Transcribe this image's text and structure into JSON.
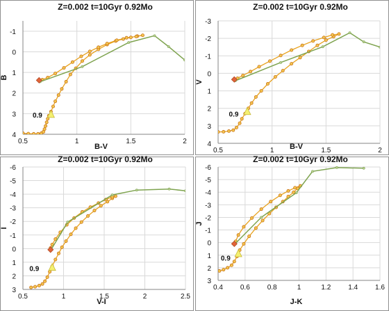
{
  "chart_data": [
    {
      "type": "line",
      "title": "Z=0.002  t=10Gyr 0.92Mo",
      "xlabel": "B-V",
      "ylabel": "B",
      "xlim": [
        0.5,
        2
      ],
      "ylim": [
        4,
        -1.5
      ],
      "y_inverted": true,
      "xticks": [
        "0.5",
        "1",
        "1.5",
        "2"
      ],
      "xtick_values": [
        0.5,
        1,
        1.5,
        2
      ],
      "yticks": [
        "-1",
        "0",
        "1",
        "2",
        "3",
        "4"
      ],
      "ytick_values": [
        -1,
        0,
        1,
        2,
        3,
        4
      ],
      "colors": {
        "model": "#e8a21e",
        "marker_edge": "#c9731a",
        "comparison": "#7ea34f",
        "triangle": "#f4f071",
        "start": "#e2643a"
      },
      "series": [
        {
          "style": "model",
          "points": [
            [
              0.5,
              3.95
            ],
            [
              0.55,
              3.97
            ],
            [
              0.6,
              3.98
            ],
            [
              0.64,
              3.98
            ],
            [
              0.67,
              3.95
            ],
            [
              0.69,
              3.88
            ],
            [
              0.7,
              3.75
            ],
            [
              0.71,
              3.6
            ],
            [
              0.72,
              3.42
            ],
            [
              0.73,
              3.25
            ],
            [
              0.74,
              3.1
            ],
            [
              0.76,
              2.9
            ],
            [
              0.78,
              2.65
            ],
            [
              0.8,
              2.4
            ],
            [
              0.83,
              2.1
            ],
            [
              0.86,
              1.8
            ],
            [
              0.9,
              1.45
            ],
            [
              0.94,
              1.1
            ],
            [
              0.99,
              0.8
            ],
            [
              1.05,
              0.45
            ],
            [
              1.12,
              0.15
            ],
            [
              1.2,
              -0.12
            ],
            [
              1.28,
              -0.35
            ],
            [
              1.36,
              -0.52
            ],
            [
              1.43,
              -0.62
            ],
            [
              1.5,
              -0.7
            ],
            [
              1.56,
              -0.76
            ],
            [
              1.61,
              -0.8
            ],
            [
              1.55,
              -0.74
            ],
            [
              1.46,
              -0.68
            ],
            [
              1.37,
              -0.56
            ],
            [
              1.28,
              -0.4
            ],
            [
              1.2,
              -0.22
            ],
            [
              1.12,
              -0.02
            ],
            [
              1.04,
              0.22
            ],
            [
              0.96,
              0.5
            ],
            [
              0.88,
              0.78
            ],
            [
              0.8,
              1.05
            ],
            [
              0.73,
              1.25
            ],
            [
              0.68,
              1.35
            ],
            [
              0.65,
              1.38
            ]
          ]
        },
        {
          "style": "comparison",
          "points": [
            [
              0.66,
              1.45
            ],
            [
              1.05,
              0.72
            ],
            [
              1.48,
              -0.45
            ],
            [
              1.72,
              -0.78
            ],
            [
              1.85,
              -0.25
            ],
            [
              2.0,
              0.4
            ]
          ]
        }
      ],
      "start_marker": [
        0.65,
        1.38
      ],
      "triangle_marker": [
        0.76,
        3.05
      ],
      "annotation": {
        "text": "0.9",
        "x": 0.59,
        "y": 3.05
      }
    },
    {
      "type": "line",
      "title": "Z=0.002  t=10Gyr 0.92Mo",
      "xlabel": "B-V",
      "ylabel": "V",
      "xlim": [
        0.5,
        2
      ],
      "ylim": [
        4,
        -3
      ],
      "y_inverted": true,
      "xticks": [
        "0.5",
        "1",
        "1.5",
        "2"
      ],
      "xtick_values": [
        0.5,
        1,
        1.5,
        2
      ],
      "yticks": [
        "-3",
        "-2",
        "-1",
        "0",
        "1",
        "2",
        "3",
        "4"
      ],
      "ytick_values": [
        -3,
        -2,
        -1,
        0,
        1,
        2,
        3,
        4
      ],
      "colors": {
        "model": "#e8a21e",
        "marker_edge": "#c9731a",
        "comparison": "#7ea34f",
        "triangle": "#f4f071",
        "start": "#e2643a"
      },
      "series": [
        {
          "style": "model",
          "points": [
            [
              0.5,
              3.35
            ],
            [
              0.55,
              3.34
            ],
            [
              0.6,
              3.3
            ],
            [
              0.64,
              3.25
            ],
            [
              0.67,
              3.1
            ],
            [
              0.7,
              2.85
            ],
            [
              0.72,
              2.6
            ],
            [
              0.75,
              2.3
            ],
            [
              0.78,
              2.0
            ],
            [
              0.81,
              1.7
            ],
            [
              0.85,
              1.35
            ],
            [
              0.9,
              1.0
            ],
            [
              0.96,
              0.6
            ],
            [
              1.03,
              0.2
            ],
            [
              1.1,
              -0.15
            ],
            [
              1.18,
              -0.55
            ],
            [
              1.26,
              -0.9
            ],
            [
              1.34,
              -1.25
            ],
            [
              1.42,
              -1.6
            ],
            [
              1.5,
              -1.9
            ],
            [
              1.57,
              -2.1
            ],
            [
              1.62,
              -2.25
            ],
            [
              1.56,
              -2.2
            ],
            [
              1.48,
              -2.05
            ],
            [
              1.38,
              -1.85
            ],
            [
              1.28,
              -1.6
            ],
            [
              1.18,
              -1.33
            ],
            [
              1.08,
              -1.02
            ],
            [
              0.98,
              -0.7
            ],
            [
              0.88,
              -0.38
            ],
            [
              0.8,
              -0.1
            ],
            [
              0.73,
              0.12
            ],
            [
              0.68,
              0.28
            ],
            [
              0.65,
              0.35
            ]
          ]
        },
        {
          "style": "comparison",
          "points": [
            [
              0.66,
              0.42
            ],
            [
              1.08,
              -0.62
            ],
            [
              1.47,
              -1.52
            ],
            [
              1.72,
              -2.32
            ],
            [
              1.85,
              -1.8
            ],
            [
              2.0,
              -1.5
            ]
          ]
        }
      ],
      "start_marker": [
        0.65,
        0.35
      ],
      "triangle_marker": [
        0.77,
        2.2
      ],
      "annotation": {
        "text": "0.9",
        "x": 0.6,
        "y": 2.3
      }
    },
    {
      "type": "line",
      "title": "Z=0.002  t=10Gyr 0.92Mo",
      "xlabel": "V-I",
      "ylabel": "I",
      "xlim": [
        0.5,
        2.5
      ],
      "ylim": [
        3,
        -6
      ],
      "y_inverted": true,
      "xticks": [
        "0.5",
        "1",
        "1.5",
        "2",
        "2.5"
      ],
      "xtick_values": [
        0.5,
        1,
        1.5,
        2,
        2.5
      ],
      "yticks": [
        "-6",
        "-5",
        "-4",
        "-3",
        "-2",
        "-1",
        "0",
        "1",
        "2",
        "3"
      ],
      "ytick_values": [
        -6,
        -5,
        -4,
        -3,
        -2,
        -1,
        0,
        1,
        2,
        3
      ],
      "colors": {
        "model": "#e8a21e",
        "marker_edge": "#c9731a",
        "comparison": "#7ea34f",
        "triangle": "#f4f071",
        "start": "#e2643a"
      },
      "series": [
        {
          "style": "model",
          "points": [
            [
              0.6,
              2.85
            ],
            [
              0.65,
              2.8
            ],
            [
              0.7,
              2.72
            ],
            [
              0.74,
              2.6
            ],
            [
              0.77,
              2.4
            ],
            [
              0.8,
              2.1
            ],
            [
              0.83,
              1.7
            ],
            [
              0.86,
              1.3
            ],
            [
              0.9,
              0.8
            ],
            [
              0.94,
              0.35
            ],
            [
              0.98,
              -0.1
            ],
            [
              1.03,
              -0.55
            ],
            [
              1.09,
              -1.05
            ],
            [
              1.15,
              -1.5
            ],
            [
              1.22,
              -1.95
            ],
            [
              1.3,
              -2.4
            ],
            [
              1.38,
              -2.8
            ],
            [
              1.46,
              -3.15
            ],
            [
              1.54,
              -3.45
            ],
            [
              1.6,
              -3.7
            ],
            [
              1.64,
              -3.85
            ],
            [
              1.6,
              -3.8
            ],
            [
              1.52,
              -3.6
            ],
            [
              1.43,
              -3.35
            ],
            [
              1.33,
              -3.05
            ],
            [
              1.23,
              -2.7
            ],
            [
              1.13,
              -2.25
            ],
            [
              1.04,
              -1.75
            ],
            [
              0.96,
              -1.2
            ],
            [
              0.9,
              -0.7
            ],
            [
              0.86,
              -0.3
            ],
            [
              0.84,
              -0.05
            ],
            [
              0.84,
              0.08
            ]
          ]
        },
        {
          "style": "comparison",
          "points": [
            [
              0.85,
              0.05
            ],
            [
              1.05,
              -1.95
            ],
            [
              1.6,
              -3.95
            ],
            [
              1.9,
              -4.3
            ],
            [
              2.3,
              -4.38
            ],
            [
              2.5,
              -4.25
            ]
          ]
        }
      ],
      "start_marker": [
        0.84,
        0.08
      ],
      "triangle_marker": [
        0.86,
        1.4
      ],
      "annotation": {
        "text": "0.9",
        "x": 0.58,
        "y": 1.45
      }
    },
    {
      "type": "line",
      "title": "Z=0.002  t=10Gyr 0.92Mo",
      "xlabel": "J-K",
      "ylabel": "J",
      "xlim": [
        0.4,
        1.6
      ],
      "ylim": [
        3,
        -6
      ],
      "y_inverted": true,
      "xticks": [
        "0.4",
        "0.6",
        "0.8",
        "1",
        "1.2",
        "1.4",
        "1.6"
      ],
      "xtick_values": [
        0.4,
        0.6,
        0.8,
        1.0,
        1.2,
        1.4,
        1.6
      ],
      "yticks": [
        "-6",
        "-5",
        "-4",
        "-3",
        "-2",
        "-1",
        "0",
        "1",
        "2",
        "3"
      ],
      "ytick_values": [
        -6,
        -5,
        -4,
        -3,
        -2,
        -1,
        0,
        1,
        2,
        3
      ],
      "colors": {
        "model": "#e8a21e",
        "marker_edge": "#c9731a",
        "comparison": "#7ea34f",
        "triangle": "#f4f071",
        "start": "#e2643a"
      },
      "series": [
        {
          "style": "model",
          "points": [
            [
              0.41,
              2.25
            ],
            [
              0.44,
              2.15
            ],
            [
              0.47,
              2.0
            ],
            [
              0.5,
              1.8
            ],
            [
              0.52,
              1.5
            ],
            [
              0.54,
              1.1
            ],
            [
              0.56,
              0.6
            ],
            [
              0.59,
              0.1
            ],
            [
              0.63,
              -0.5
            ],
            [
              0.68,
              -1.15
            ],
            [
              0.73,
              -1.75
            ],
            [
              0.78,
              -2.3
            ],
            [
              0.83,
              -2.8
            ],
            [
              0.88,
              -3.25
            ],
            [
              0.92,
              -3.65
            ],
            [
              0.96,
              -4.0
            ],
            [
              0.99,
              -4.3
            ],
            [
              1.01,
              -4.5
            ],
            [
              0.97,
              -4.35
            ],
            [
              0.92,
              -4.1
            ],
            [
              0.86,
              -3.75
            ],
            [
              0.79,
              -3.25
            ],
            [
              0.72,
              -2.65
            ],
            [
              0.65,
              -1.95
            ],
            [
              0.59,
              -1.25
            ],
            [
              0.55,
              -0.6
            ],
            [
              0.53,
              -0.1
            ],
            [
              0.52,
              0.1
            ]
          ]
        },
        {
          "style": "comparison",
          "points": [
            [
              0.53,
              0.05
            ],
            [
              0.72,
              -2.0
            ],
            [
              0.98,
              -3.95
            ],
            [
              1.1,
              -5.65
            ],
            [
              1.28,
              -5.95
            ],
            [
              1.48,
              -5.9
            ]
          ]
        }
      ],
      "start_marker": [
        0.52,
        0.1
      ],
      "triangle_marker": [
        0.55,
        0.9
      ],
      "annotation": {
        "text": "0.9",
        "x": 0.42,
        "y": 1.2
      }
    }
  ]
}
